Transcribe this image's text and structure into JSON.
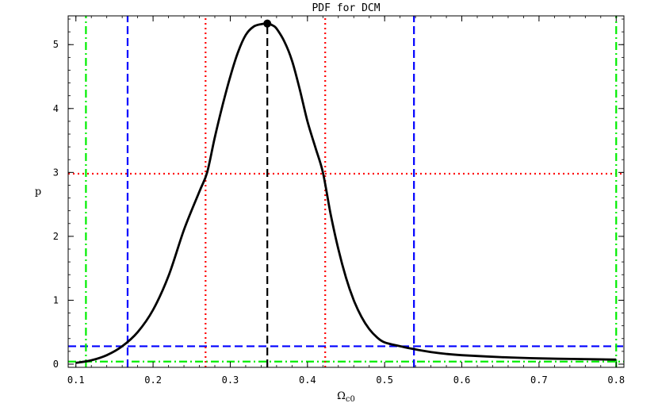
{
  "chart_data": {
    "type": "line",
    "title": "PDF for DCM",
    "xlabel": "Ω",
    "xlabel_sub": "c0",
    "ylabel": "p",
    "xlim": [
      0.09,
      0.81
    ],
    "ylim": [
      -0.05,
      5.45
    ],
    "xticks": [
      0.1,
      0.2,
      0.3,
      0.4,
      0.5,
      0.6,
      0.7,
      0.8
    ],
    "yticks": [
      0,
      1,
      2,
      3,
      4,
      5
    ],
    "grid": false,
    "series": [
      {
        "style": "solid",
        "color": "#000000",
        "x": [
          0.1,
          0.12,
          0.14,
          0.16,
          0.18,
          0.2,
          0.22,
          0.24,
          0.26,
          0.27,
          0.28,
          0.29,
          0.3,
          0.31,
          0.32,
          0.33,
          0.34,
          0.348,
          0.355,
          0.36,
          0.37,
          0.38,
          0.39,
          0.4,
          0.41,
          0.42,
          0.43,
          0.44,
          0.45,
          0.46,
          0.47,
          0.48,
          0.49,
          0.5,
          0.52,
          0.54,
          0.56,
          0.58,
          0.6,
          0.65,
          0.7,
          0.75,
          0.8
        ],
        "y": [
          0.02,
          0.06,
          0.14,
          0.28,
          0.5,
          0.85,
          1.38,
          2.1,
          2.7,
          3.0,
          3.55,
          4.05,
          4.5,
          4.88,
          5.15,
          5.28,
          5.32,
          5.33,
          5.3,
          5.25,
          5.05,
          4.75,
          4.3,
          3.8,
          3.4,
          3.0,
          2.35,
          1.8,
          1.35,
          1.0,
          0.74,
          0.55,
          0.42,
          0.34,
          0.28,
          0.23,
          0.19,
          0.16,
          0.14,
          0.11,
          0.09,
          0.08,
          0.07
        ]
      }
    ],
    "vlines": [
      {
        "x": 0.348,
        "ymax": 5.33,
        "style": "dashed",
        "color": "#000000"
      },
      {
        "x": 0.268,
        "style": "dotted",
        "color": "#ff0000"
      },
      {
        "x": 0.423,
        "style": "dotted",
        "color": "#ff0000"
      },
      {
        "x": 0.167,
        "style": "dashed",
        "color": "#0000ff"
      },
      {
        "x": 0.538,
        "style": "dashed",
        "color": "#0000ff"
      },
      {
        "x": 0.113,
        "style": "dashdot",
        "color": "#00ee00"
      },
      {
        "x": 0.8,
        "style": "dashdot",
        "color": "#00ee00"
      }
    ],
    "hlines": [
      {
        "y": 2.98,
        "style": "dotted",
        "color": "#ff0000"
      },
      {
        "y": 0.28,
        "style": "dashed",
        "color": "#0000ff"
      },
      {
        "y": 0.04,
        "style": "dashdot",
        "color": "#00ee00"
      }
    ],
    "marker": {
      "x": 0.348,
      "y": 5.33,
      "color": "#000000"
    }
  }
}
